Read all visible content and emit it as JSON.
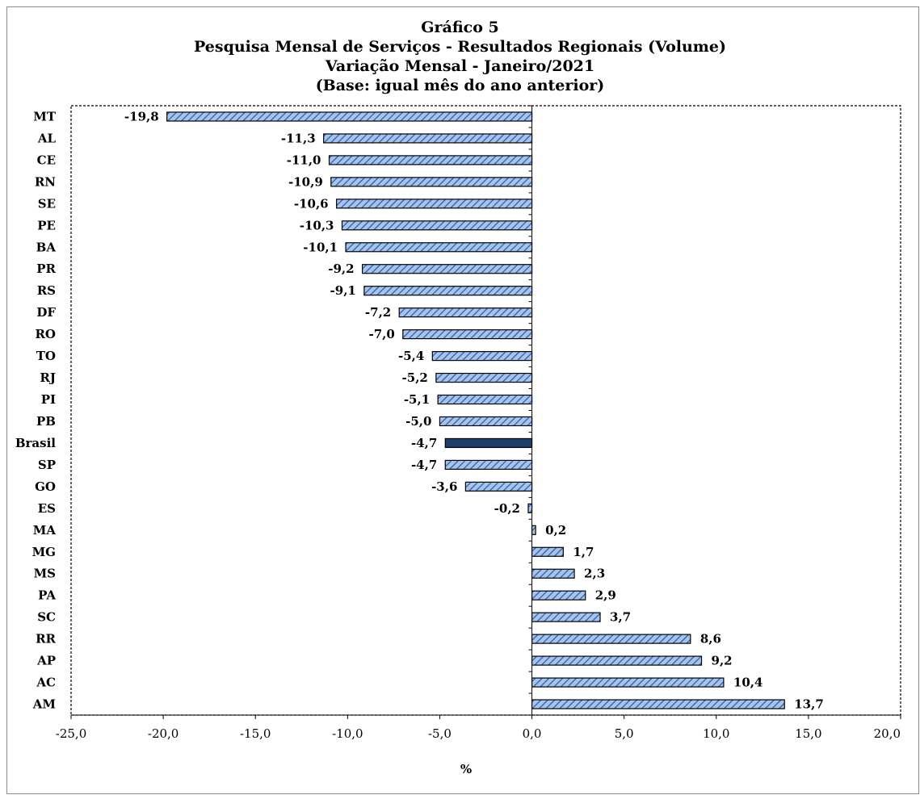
{
  "chart_data": {
    "type": "bar",
    "orientation": "horizontal",
    "title": "Gráfico 5",
    "subtitle": [
      "Pesquisa  Mensal de Serviços - Resultados Regionais (Volume)",
      "Variação Mensal - Janeiro/2021",
      "(Base: igual mês do ano anterior)"
    ],
    "xlabel": "%",
    "ylabel": "",
    "xlim": [
      -25,
      20
    ],
    "xticks": [
      "-25,0",
      "-20,0",
      "-15,0",
      "-10,0",
      "-5,0",
      "0,0",
      "5,0",
      "10,0",
      "15,0",
      "20,0"
    ],
    "grid": false,
    "legend": "none",
    "categories": [
      "MT",
      "AL",
      "CE",
      "RN",
      "SE",
      "PE",
      "BA",
      "PR",
      "RS",
      "DF",
      "RO",
      "TO",
      "RJ",
      "PI",
      "PB",
      "Brasil",
      "SP",
      "GO",
      "ES",
      "MA",
      "MG",
      "MS",
      "PA",
      "SC",
      "RR",
      "AP",
      "AC",
      "AM"
    ],
    "values": [
      -19.8,
      -11.3,
      -11.0,
      -10.9,
      -10.6,
      -10.3,
      -10.1,
      -9.2,
      -9.1,
      -7.2,
      -7.0,
      -5.4,
      -5.2,
      -5.1,
      -5.0,
      -4.7,
      -4.7,
      -3.6,
      -0.2,
      0.2,
      1.7,
      2.3,
      2.9,
      3.7,
      8.6,
      9.2,
      10.4,
      13.7
    ],
    "value_labels": [
      "-19,8",
      "-11,3",
      "-11,0",
      "-10,9",
      "-10,6",
      "-10,3",
      "-10,1",
      "-9,2",
      "-9,1",
      "-7,2",
      "-7,0",
      "-5,4",
      "-5,2",
      "-5,1",
      "-5,0",
      "-4,7",
      "-4,7",
      "-3,6",
      "-0,2",
      "0,2",
      "1,7",
      "2,3",
      "2,9",
      "3,7",
      "8,6",
      "9,2",
      "10,4",
      "13,7"
    ],
    "highlight_category": "Brasil",
    "colors": {
      "bar_fill": "#a9c4ea",
      "bar_hatch": "#3b6cb5",
      "highlight_fill": "#1f3f6b",
      "bar_stroke": "#000000"
    }
  }
}
